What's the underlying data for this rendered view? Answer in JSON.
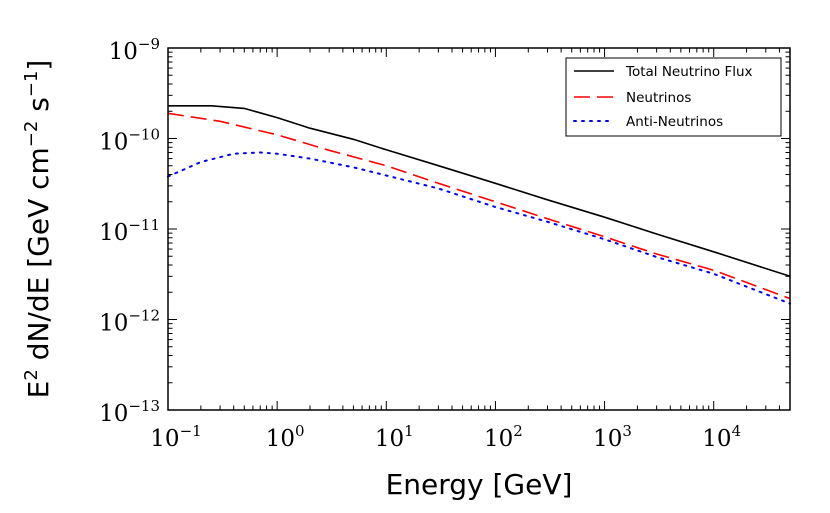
{
  "chart_data": {
    "type": "line",
    "title": "",
    "xscale": "log",
    "yscale": "log",
    "xlim": [
      0.1,
      50000
    ],
    "ylim": [
      1e-13,
      1e-09
    ],
    "xlabel": "Energy [GeV]",
    "ylabel": {
      "prefix": "E",
      "prefix_sup": "2",
      "main": " dN/dE [GeV cm",
      "sup1": "−2",
      "mid": " s",
      "sup2": "−1",
      "suffix": "]"
    },
    "x_ticks": [
      {
        "value": 0.1,
        "base": "10",
        "exp": "−1"
      },
      {
        "value": 1,
        "base": "10",
        "exp": "0"
      },
      {
        "value": 10,
        "base": "10",
        "exp": "1"
      },
      {
        "value": 100,
        "base": "10",
        "exp": "2"
      },
      {
        "value": 1000,
        "base": "10",
        "exp": "3"
      },
      {
        "value": 10000,
        "base": "10",
        "exp": "4"
      }
    ],
    "y_ticks": [
      {
        "value": 1e-13,
        "base": "10",
        "exp": "−13"
      },
      {
        "value": 1e-12,
        "base": "10",
        "exp": "−12"
      },
      {
        "value": 1e-11,
        "base": "10",
        "exp": "−11"
      },
      {
        "value": 1e-10,
        "base": "10",
        "exp": "−10"
      },
      {
        "value": 1e-09,
        "base": "10",
        "exp": "−9"
      }
    ],
    "legend_position": "top-right",
    "series": [
      {
        "name": "Total Neutrino Flux",
        "color": "#000000",
        "style": "solid",
        "x": [
          0.1,
          0.25,
          0.5,
          1,
          2,
          5,
          10,
          30,
          100,
          300,
          1000,
          3000,
          10000,
          50000
        ],
        "y": [
          2.3e-10,
          2.3e-10,
          2.15e-10,
          1.7e-10,
          1.3e-10,
          9.8e-11,
          7.5e-11,
          5e-11,
          3.2e-11,
          2.1e-11,
          1.35e-11,
          8.8e-12,
          5.6e-12,
          3e-12
        ]
      },
      {
        "name": "Neutrinos",
        "color": "#ff0000",
        "style": "dashed",
        "x": [
          0.1,
          0.3,
          1,
          3,
          10,
          30,
          100,
          300,
          1000,
          3000,
          10000,
          50000
        ],
        "y": [
          1.9e-10,
          1.55e-10,
          1.1e-10,
          7.4e-11,
          5e-11,
          3.2e-11,
          2e-11,
          1.3e-11,
          8.2e-12,
          5.3e-12,
          3.5e-12,
          1.7e-12
        ]
      },
      {
        "name": "Anti-Neutrinos",
        "color": "#0000ff",
        "style": "dotted",
        "x": [
          0.1,
          0.2,
          0.4,
          0.7,
          1,
          2,
          5,
          10,
          30,
          100,
          300,
          1000,
          3000,
          10000,
          50000
        ],
        "y": [
          3.8e-11,
          5.5e-11,
          6.8e-11,
          7e-11,
          6.8e-11,
          6e-11,
          4.8e-11,
          3.9e-11,
          2.8e-11,
          1.75e-11,
          1.2e-11,
          7.7e-12,
          4.9e-12,
          3.2e-12,
          1.5e-12
        ]
      }
    ]
  }
}
